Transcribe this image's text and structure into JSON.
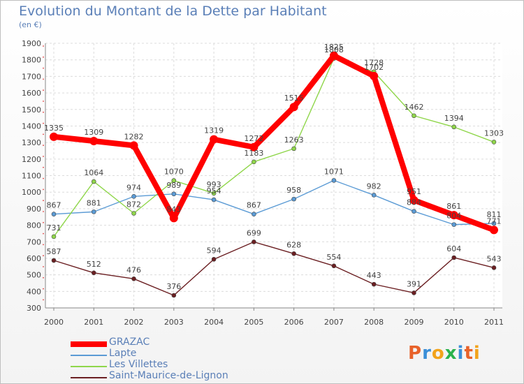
{
  "header": {
    "title": "Evolution du Montant de la Dette par Habitant",
    "unit": "(en €)"
  },
  "brand": {
    "letters": [
      "P",
      "r",
      "o",
      "x",
      "i",
      "t",
      "i"
    ],
    "colors": [
      "#e8622a",
      "#3a8fd8",
      "#f2a31b",
      "#2bb24c",
      "#3a8fd8",
      "#e8622a",
      "#f2a31b"
    ]
  },
  "chart_data": {
    "type": "line",
    "title": "Evolution du Montant de la Dette par Habitant",
    "ylabel": "(en €)",
    "xlabel": "",
    "ylim": [
      300,
      1900
    ],
    "yticks": [
      "300",
      "400",
      "500",
      "600",
      "700",
      "800",
      "900",
      "1000",
      "1100",
      "1200",
      "1300",
      "1400",
      "1500",
      "1600",
      "1700",
      "1800",
      "1900"
    ],
    "x": [
      "2000",
      "2001",
      "2002",
      "2003",
      "2004",
      "2005",
      "2006",
      "2007",
      "2008",
      "2009",
      "2010",
      "2011"
    ],
    "grid": true,
    "legend_position": "bottom-left",
    "series": [
      {
        "name": "GRAZAC",
        "color": "#ff0000",
        "values": [
          1335,
          1309,
          1282,
          843,
          1319,
          1272,
          1515,
          1825,
          1702,
          951,
          861,
          771
        ],
        "labels": [
          "1335",
          "1309",
          "1282",
          "843",
          "1319",
          "1272",
          "1515",
          "1825",
          "1702",
          "951",
          "861",
          "771"
        ]
      },
      {
        "name": "Lapte",
        "color": "#5b9bd5",
        "values": [
          867,
          881,
          974,
          989,
          954,
          867,
          958,
          1071,
          982,
          884,
          804,
          811
        ],
        "labels": [
          "867",
          "881",
          "974",
          "989",
          "954",
          "867",
          "958",
          "1071",
          "982",
          "884",
          "804",
          "811"
        ]
      },
      {
        "name": "Les Villettes",
        "color": "#8fd64a",
        "values": [
          731,
          1064,
          872,
          1070,
          993,
          1183,
          1263,
          1808,
          1728,
          1462,
          1394,
          1303
        ],
        "labels": [
          "731",
          "1064",
          "872",
          "1070",
          "993",
          "1183",
          "1263",
          "1808",
          "1728",
          "1462",
          "1394",
          "1303"
        ]
      },
      {
        "name": "Saint-Maurice-de-Lignon",
        "color": "#6b1f22",
        "values": [
          587,
          512,
          476,
          376,
          594,
          699,
          628,
          554,
          443,
          391,
          604,
          543
        ],
        "labels": [
          "587",
          "512",
          "476",
          "376",
          "594",
          "699",
          "628",
          "554",
          "443",
          "391",
          "604",
          "543"
        ]
      }
    ]
  }
}
